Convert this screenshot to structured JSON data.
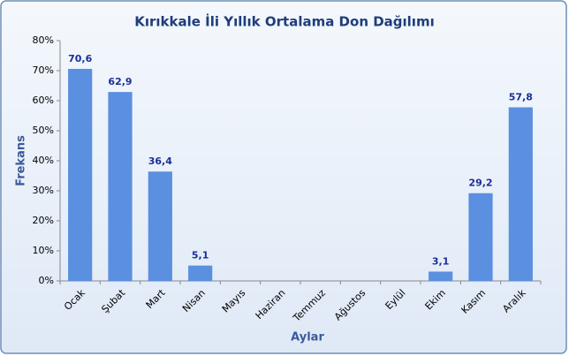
{
  "chart_data": {
    "type": "bar",
    "title": "Kırıkkale İli Yıllık Ortalama Don Dağılımı",
    "y_label": "Frekans",
    "x_label": "Aylar",
    "categories": [
      "Ocak",
      "Şubat",
      "Mart",
      "Nisan",
      "Mayıs",
      "Haziran",
      "Temmuz",
      "Ağustos",
      "Eylül",
      "Ekim",
      "Kasım",
      "Aralık"
    ],
    "values": [
      70.6,
      62.9,
      36.4,
      5.1,
      null,
      null,
      null,
      null,
      null,
      3.1,
      29.2,
      57.8
    ],
    "value_labels": [
      "70,6",
      "62,9",
      "36,4",
      "5,1",
      null,
      null,
      null,
      null,
      null,
      "3,1",
      "29,2",
      "57,8"
    ],
    "color": "#5b8fe0",
    "ylim": [
      0,
      80
    ],
    "yticks": [
      {
        "value": 0,
        "label": "0%"
      },
      {
        "value": 10,
        "label": "10%"
      },
      {
        "value": 20,
        "label": "20%"
      },
      {
        "value": 30,
        "label": "30%"
      },
      {
        "value": 40,
        "label": "40%"
      },
      {
        "value": 50,
        "label": "50%"
      },
      {
        "value": 60,
        "label": "60%"
      },
      {
        "value": 70,
        "label": "70%"
      },
      {
        "value": 80,
        "label": "80%"
      }
    ],
    "grid": false
  }
}
